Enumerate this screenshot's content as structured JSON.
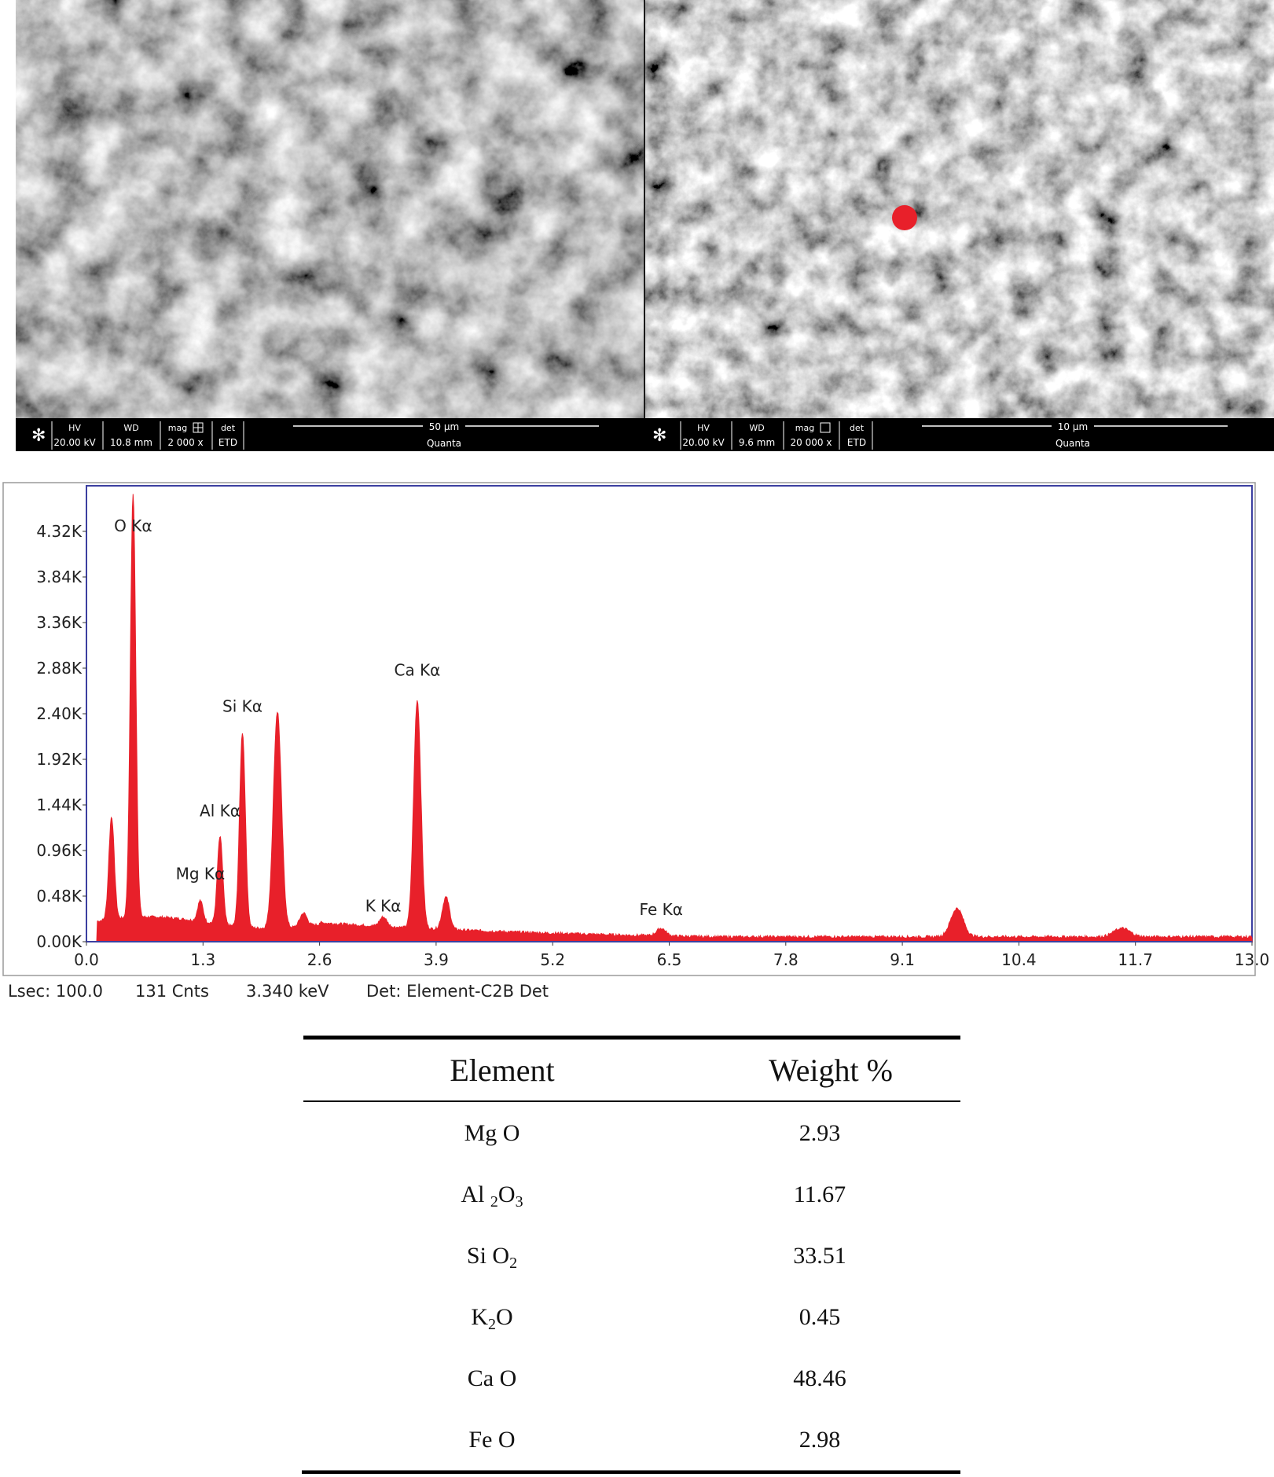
{
  "sem_panels": [
    {
      "hv_label": "HV",
      "hv_value": "20.00 kV",
      "wd_label": "WD",
      "wd_value": "10.8 mm",
      "mag_label": "mag",
      "mag_value": "2 000 x",
      "det_label": "det",
      "det_value": "ETD",
      "scale_label": "50 µm",
      "instrument": "Quanta"
    },
    {
      "hv_label": "HV",
      "hv_value": "20.00 kV",
      "wd_label": "WD",
      "wd_value": "9.6 mm",
      "mag_label": "mag",
      "mag_value": "20 000 x",
      "det_label": "det",
      "det_value": "ETD",
      "scale_label": "10 µm",
      "instrument": "Quanta"
    }
  ],
  "colors": {
    "spectrum": "#e8202a",
    "frame": "#3b3fa0",
    "marker": "#e8202a"
  },
  "chart_data": {
    "type": "area",
    "title": "",
    "xlabel": "",
    "ylabel": "",
    "xlim": [
      0.0,
      13.0
    ],
    "ylim": [
      0.0,
      4.8
    ],
    "x_ticks": [
      "0.0",
      "1.3",
      "2.6",
      "3.9",
      "5.2",
      "6.5",
      "7.8",
      "9.1",
      "10.4",
      "11.7",
      "13.0"
    ],
    "y_ticks": [
      "0.00K",
      "0.48K",
      "0.96K",
      "1.44K",
      "1.92K",
      "2.40K",
      "2.88K",
      "3.36K",
      "3.84K",
      "4.32K"
    ],
    "peaks": [
      {
        "x": 0.28,
        "h": 1.08,
        "w": 0.03
      },
      {
        "x": 0.52,
        "h": 4.46,
        "w": 0.03
      },
      {
        "x": 1.27,
        "h": 0.22,
        "w": 0.03
      },
      {
        "x": 1.49,
        "h": 0.92,
        "w": 0.03
      },
      {
        "x": 1.74,
        "h": 2.05,
        "w": 0.032
      },
      {
        "x": 2.13,
        "h": 2.28,
        "w": 0.045
      },
      {
        "x": 2.42,
        "h": 0.14,
        "w": 0.04
      },
      {
        "x": 3.31,
        "h": 0.1,
        "w": 0.04
      },
      {
        "x": 3.69,
        "h": 2.4,
        "w": 0.04
      },
      {
        "x": 4.01,
        "h": 0.34,
        "w": 0.04
      },
      {
        "x": 6.41,
        "h": 0.08,
        "w": 0.05
      },
      {
        "x": 9.71,
        "h": 0.3,
        "w": 0.07
      },
      {
        "x": 11.55,
        "h": 0.09,
        "w": 0.09
      }
    ],
    "peak_labels": [
      {
        "text": "O Kα",
        "x": 0.52,
        "y": 4.32
      },
      {
        "text": "Mg Kα",
        "x": 1.27,
        "y": 0.66
      },
      {
        "text": "Al Kα",
        "x": 1.49,
        "y": 1.32
      },
      {
        "text": "Si Kα",
        "x": 1.74,
        "y": 2.42
      },
      {
        "text": "K  Kα",
        "x": 3.31,
        "y": 0.32
      },
      {
        "text": "Ca Kα",
        "x": 3.69,
        "y": 2.8
      },
      {
        "text": "Fe Kα",
        "x": 6.41,
        "y": 0.28
      }
    ]
  },
  "status_bar": {
    "lsec": "Lsec: 100.0",
    "cnts": "131 Cnts",
    "kev": "3.340 keV",
    "det": "Det: Element-C2B Det"
  },
  "table": {
    "headers": [
      "Element",
      "Weight %"
    ],
    "rows": [
      {
        "element": "Mg O",
        "weight": "2.93"
      },
      {
        "element": "Al 2O3",
        "weight": "11.67"
      },
      {
        "element": "Si O2",
        "weight": "33.51"
      },
      {
        "element": "K2O",
        "weight": "0.45"
      },
      {
        "element": "Ca O",
        "weight": "48.46"
      },
      {
        "element": "Fe O",
        "weight": "2.98"
      }
    ]
  }
}
